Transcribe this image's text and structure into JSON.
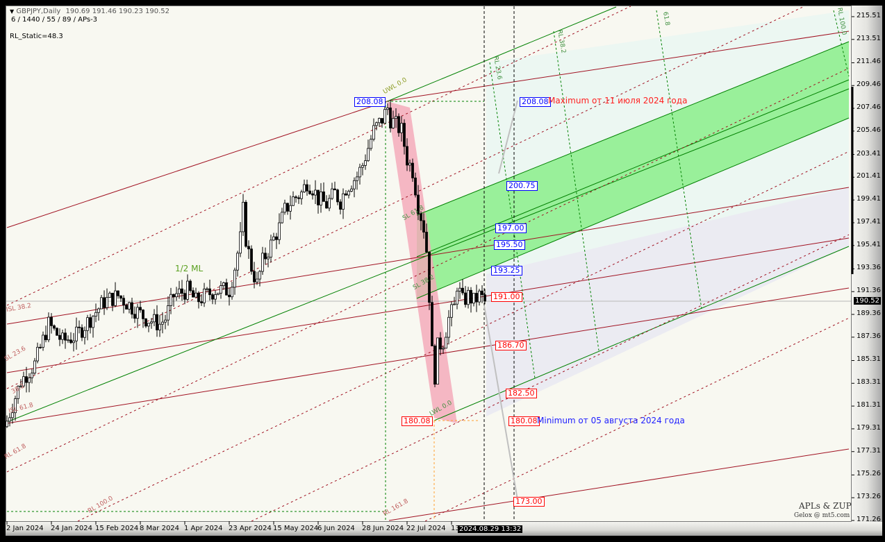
{
  "header": {
    "symbol": "GBPJPY,Daily",
    "ohlc": "190.69 191.46 190.23 190.52",
    "params": "6 / 1440 / 55 / 89 / APs-3",
    "indicator": "RL_Static=48.3"
  },
  "chart_data": {
    "type": "candlestick",
    "symbol": "GBPJPY",
    "timeframe": "Daily",
    "ylim": [
      171.26,
      215.51
    ],
    "y_ticks": [
      "215.51",
      "213.51",
      "211.46",
      "209.46",
      "207.46",
      "205.46",
      "203.41",
      "201.41",
      "199.41",
      "197.41",
      "195.41",
      "193.36",
      "191.36",
      "189.36",
      "187.36",
      "185.31",
      "183.31",
      "181.31",
      "179.31",
      "177.31",
      "175.26",
      "173.26",
      "171.26"
    ],
    "x_ticks": [
      "2 Jan 2024",
      "24 Jan 2024",
      "15 Feb 2024",
      "8 Mar 2024",
      "1 Apr 2024",
      "23 Apr 2024",
      "15 May 2024",
      "6 Jun 2024",
      "28 Jun 2024",
      "22 Jul 2024",
      "13"
    ],
    "current_price": "190.52",
    "cursor_time": "2024.08.29 13:32",
    "price_path": [
      [
        0,
        180.0
      ],
      [
        5,
        183.5
      ],
      [
        10,
        185
      ],
      [
        15,
        188.5
      ],
      [
        20,
        187
      ],
      [
        25,
        187.5
      ],
      [
        30,
        189
      ],
      [
        35,
        190.5
      ],
      [
        40,
        191
      ],
      [
        45,
        190
      ],
      [
        50,
        189
      ],
      [
        55,
        188.5
      ],
      [
        57,
        189
      ],
      [
        60,
        191
      ],
      [
        65,
        191.5
      ],
      [
        68,
        190.5
      ],
      [
        70,
        190.8
      ],
      [
        75,
        191.5
      ],
      [
        80,
        191.5
      ],
      [
        82,
        193.5
      ],
      [
        84,
        196
      ],
      [
        85,
        198.5
      ],
      [
        86,
        196
      ],
      [
        88,
        193.5
      ],
      [
        90,
        192
      ],
      [
        92,
        194
      ],
      [
        95,
        195.5
      ],
      [
        98,
        197
      ],
      [
        100,
        198.5
      ],
      [
        103,
        199.5
      ],
      [
        106,
        200
      ],
      [
        108,
        201
      ],
      [
        110,
        200.5
      ],
      [
        112,
        199.5
      ],
      [
        115,
        199
      ],
      [
        118,
        200
      ],
      [
        120,
        199.3
      ],
      [
        122,
        200.5
      ],
      [
        124,
        201
      ],
      [
        126,
        201.5
      ],
      [
        128,
        202.5
      ],
      [
        130,
        204
      ],
      [
        132,
        205.5
      ],
      [
        135,
        206.5
      ],
      [
        137,
        207.5
      ],
      [
        138,
        206.5
      ],
      [
        140,
        206
      ],
      [
        142,
        205.5
      ],
      [
        144,
        203
      ],
      [
        146,
        202
      ],
      [
        148,
        199
      ],
      [
        150,
        197
      ],
      [
        151,
        195
      ],
      [
        152,
        191
      ],
      [
        153,
        186
      ],
      [
        154,
        184
      ],
      [
        155,
        186.5
      ],
      [
        157,
        187
      ],
      [
        159,
        189
      ],
      [
        161,
        190
      ],
      [
        162,
        192
      ],
      [
        164,
        190.5
      ],
      [
        166,
        191
      ],
      [
        168,
        190.5
      ],
      [
        170,
        191
      ],
      [
        172,
        190.52
      ]
    ],
    "levels": [
      {
        "id": "max-left",
        "value": "208.08",
        "color": "#0000ff"
      },
      {
        "id": "max-right",
        "value": "208.08",
        "color": "#0000ff"
      },
      {
        "id": "l200",
        "value": "200.75",
        "color": "#0000ff"
      },
      {
        "id": "l197",
        "value": "197.00",
        "color": "#0000ff"
      },
      {
        "id": "l195",
        "value": "195.50",
        "color": "#0000ff"
      },
      {
        "id": "l193",
        "value": "193.25",
        "color": "#0000ff"
      },
      {
        "id": "l191",
        "value": "191.00",
        "color": "#ff0000"
      },
      {
        "id": "l186",
        "value": "186.70",
        "color": "#ff0000"
      },
      {
        "id": "l182",
        "value": "182.50",
        "color": "#ff0000"
      },
      {
        "id": "min-left",
        "value": "180.08",
        "color": "#ff0000"
      },
      {
        "id": "min-right",
        "value": "180.08",
        "color": "#ff0000"
      },
      {
        "id": "l173",
        "value": "173.00",
        "color": "#ff0000"
      }
    ],
    "annotations": {
      "max_text": "Maximum от 11 июля 2024 года",
      "min_text": "Minimum от 05 августа 2024 года"
    },
    "fib_labels": [
      "UWL 0.0",
      "1/2 ML",
      "ISL 38.2",
      "SL 23.6",
      "38.2",
      "ISL 61.8",
      "RL 61.8",
      "RL 100.0",
      "RL 161.8",
      "RL 23.6",
      "RL 38.2",
      "61.8",
      "RL 100.0",
      "SL 61.8",
      "SL 38.2",
      "LWL 0.0"
    ],
    "colors": {
      "bull": "#ffffff",
      "bear": "#000000",
      "channel_green": "#90ee90",
      "median_pink": "#f4a6b8",
      "red_lines": "#a01020",
      "green_lines": "#008000"
    }
  },
  "watermark": {
    "line1": "APLs & ZUP",
    "line2": "Gelox @ mt5.com"
  }
}
